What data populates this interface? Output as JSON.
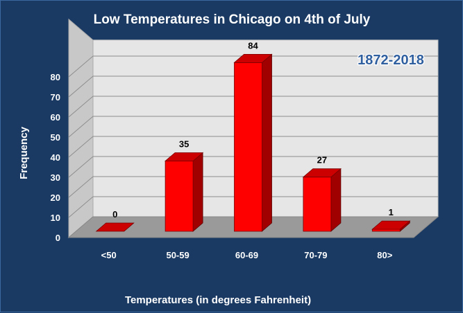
{
  "chart_data": {
    "type": "bar",
    "title": "Low Temperatures in Chicago on 4th of July",
    "annotation": "1872-2018",
    "xlabel": "Temperatures (in degrees Fahrenheit)",
    "ylabel": "Frequency",
    "categories": [
      "<50",
      "50-59",
      "60-69",
      "70-79",
      "80>"
    ],
    "values": [
      0,
      35,
      84,
      27,
      1
    ],
    "ylim": [
      0,
      80
    ],
    "yticks": [
      0,
      10,
      20,
      30,
      40,
      50,
      60,
      70,
      80
    ],
    "grid": true,
    "legend": "none",
    "bar_color": "#ff0000",
    "bar_side_color": "#a00000",
    "bar_top_color": "#cc0000",
    "wall_color": "#e6e6e6",
    "floor_color": "#9a9a9a",
    "background_color": "#1a3a63"
  }
}
